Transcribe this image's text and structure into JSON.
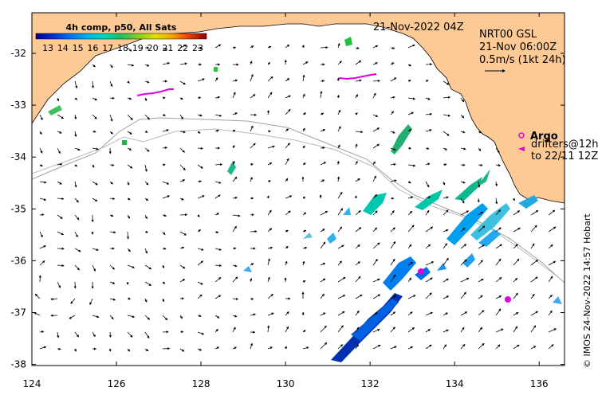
{
  "map": {
    "timestamp": "21-Nov-2022 04Z",
    "colorbar": {
      "title": "4h comp, p50, All Sats",
      "ticks": [
        "13",
        "14",
        "15",
        "16",
        "17",
        "18",
        "19",
        "20",
        "21",
        "22",
        "23"
      ],
      "colors": [
        "#00008b",
        "#0020c0",
        "#0050e0",
        "#0088f0",
        "#00b8e8",
        "#00d8b0",
        "#10c070",
        "#40c040",
        "#90d020",
        "#d8e000",
        "#f8c000",
        "#f09000",
        "#e05000",
        "#c02000",
        "#900000"
      ]
    },
    "currents": {
      "line1": "NRT00 GSL",
      "line2": "21-Nov 06:00Z",
      "line3": "0.5m/s (1kt 24h)"
    },
    "argo_label": "Argo",
    "drifters_line1": "drifters@12h",
    "drifters_line2": "to 22/11 12Z",
    "credit": "© IMOS 24-Nov-2022 14:57 Hobart",
    "x_ticks": [
      "124",
      "126",
      "128",
      "130",
      "132",
      "134",
      "136"
    ],
    "y_ticks": [
      "-32",
      "-33",
      "-34",
      "-35",
      "-36",
      "-37",
      "-38"
    ],
    "land_color": "#fdc994",
    "ocean_color": "#ffffff",
    "argo_color": "#e000e0"
  }
}
